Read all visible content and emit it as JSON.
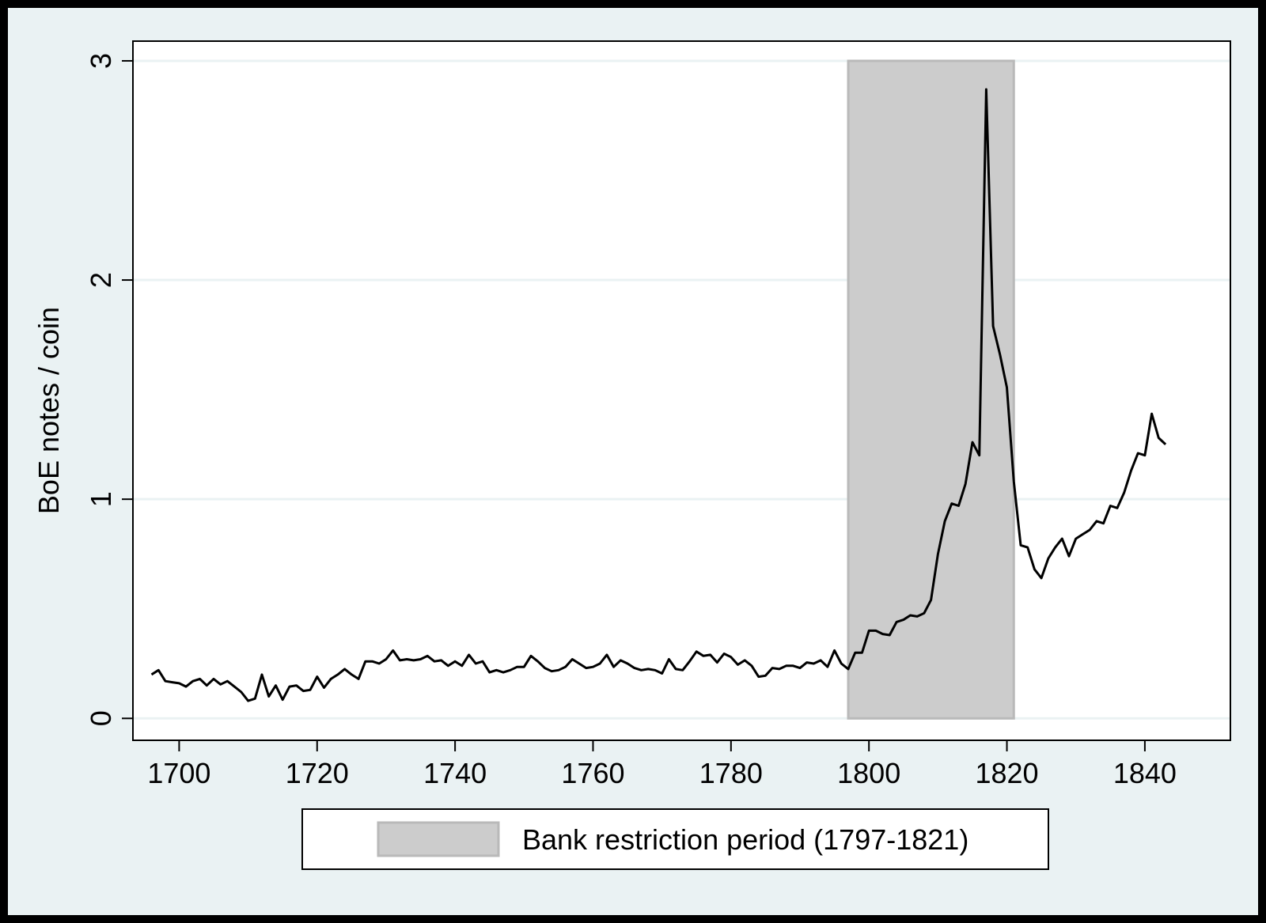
{
  "chart_data": {
    "type": "line",
    "title": "",
    "xlabel": "",
    "ylabel": "BoE notes / coin",
    "xlim": [
      1693.3,
      1852.4
    ],
    "ylim": [
      -0.1,
      3.09
    ],
    "x_ticks": [
      1700,
      1720,
      1740,
      1760,
      1780,
      1800,
      1820,
      1840
    ],
    "y_ticks": [
      0,
      1,
      2,
      3
    ],
    "grid": "horizontal",
    "legend_position": "bottom",
    "colors": {
      "frame": "#eaf2f3",
      "plot": "#ffffff",
      "grid": "#eaf2f3",
      "line": "#000000",
      "band_fill": "#cccccc",
      "band_edge": "#b9b9b9",
      "border": "#000000"
    },
    "shaded_region": {
      "name": "Bank restriction period (1797-1821)",
      "x_start": 1797,
      "x_end": 1821,
      "y_min": 0,
      "y_max": 3
    },
    "legend": [
      {
        "label": "Bank restriction period (1797-1821)",
        "swatch": "band"
      }
    ],
    "series": [
      {
        "x": [
          1696,
          1697,
          1698,
          1699,
          1700,
          1701,
          1702,
          1703,
          1704,
          1705,
          1706,
          1707,
          1708,
          1709,
          1710,
          1711,
          1712,
          1713,
          1714,
          1715,
          1716,
          1717,
          1718,
          1719,
          1720,
          1721,
          1722,
          1723,
          1724,
          1725,
          1726,
          1727,
          1728,
          1729,
          1730,
          1731,
          1732,
          1733,
          1734,
          1735,
          1736,
          1737,
          1738,
          1739,
          1740,
          1741,
          1742,
          1743,
          1744,
          1745,
          1746,
          1747,
          1748,
          1749,
          1750,
          1751,
          1752,
          1753,
          1754,
          1755,
          1756,
          1757,
          1758,
          1759,
          1760,
          1761,
          1762,
          1763,
          1764,
          1765,
          1766,
          1767,
          1768,
          1769,
          1770,
          1771,
          1772,
          1773,
          1774,
          1775,
          1776,
          1777,
          1778,
          1779,
          1780,
          1781,
          1782,
          1783,
          1784,
          1785,
          1786,
          1787,
          1788,
          1789,
          1790,
          1791,
          1792,
          1793,
          1794,
          1795,
          1796,
          1797,
          1798,
          1799,
          1800,
          1801,
          1802,
          1803,
          1804,
          1805,
          1806,
          1807,
          1808,
          1809,
          1810,
          1811,
          1812,
          1813,
          1814,
          1815,
          1816,
          1817,
          1818,
          1819,
          1820,
          1821,
          1822,
          1823,
          1824,
          1825,
          1826,
          1827,
          1828,
          1829,
          1830,
          1831,
          1832,
          1833,
          1834,
          1835,
          1836,
          1837,
          1838,
          1839,
          1840,
          1841,
          1842,
          1843
        ],
        "y": [
          0.2,
          0.22,
          0.17,
          0.165,
          0.16,
          0.145,
          0.17,
          0.18,
          0.15,
          0.18,
          0.155,
          0.17,
          0.145,
          0.12,
          0.08,
          0.09,
          0.2,
          0.1,
          0.15,
          0.085,
          0.145,
          0.15,
          0.125,
          0.13,
          0.19,
          0.14,
          0.18,
          0.2,
          0.225,
          0.2,
          0.18,
          0.26,
          0.26,
          0.25,
          0.27,
          0.31,
          0.265,
          0.27,
          0.265,
          0.27,
          0.285,
          0.26,
          0.265,
          0.24,
          0.26,
          0.24,
          0.29,
          0.25,
          0.26,
          0.21,
          0.22,
          0.21,
          0.22,
          0.235,
          0.235,
          0.285,
          0.26,
          0.23,
          0.215,
          0.22,
          0.235,
          0.27,
          0.25,
          0.23,
          0.235,
          0.25,
          0.29,
          0.235,
          0.265,
          0.25,
          0.23,
          0.22,
          0.225,
          0.22,
          0.205,
          0.27,
          0.225,
          0.22,
          0.26,
          0.305,
          0.285,
          0.29,
          0.255,
          0.295,
          0.28,
          0.245,
          0.265,
          0.24,
          0.19,
          0.195,
          0.23,
          0.225,
          0.24,
          0.24,
          0.23,
          0.255,
          0.25,
          0.265,
          0.235,
          0.31,
          0.25,
          0.225,
          0.3,
          0.3,
          0.4,
          0.4,
          0.385,
          0.38,
          0.44,
          0.45,
          0.47,
          0.465,
          0.48,
          0.54,
          0.75,
          0.9,
          0.98,
          0.97,
          1.07,
          1.26,
          1.2,
          2.87,
          1.79,
          1.66,
          1.51,
          1.08,
          0.79,
          0.78,
          0.68,
          0.64,
          0.73,
          0.78,
          0.82,
          0.74,
          0.82,
          0.84,
          0.86,
          0.9,
          0.89,
          0.97,
          0.96,
          1.03,
          1.13,
          1.21,
          1.2,
          1.39,
          1.28,
          1.25
        ]
      }
    ]
  }
}
